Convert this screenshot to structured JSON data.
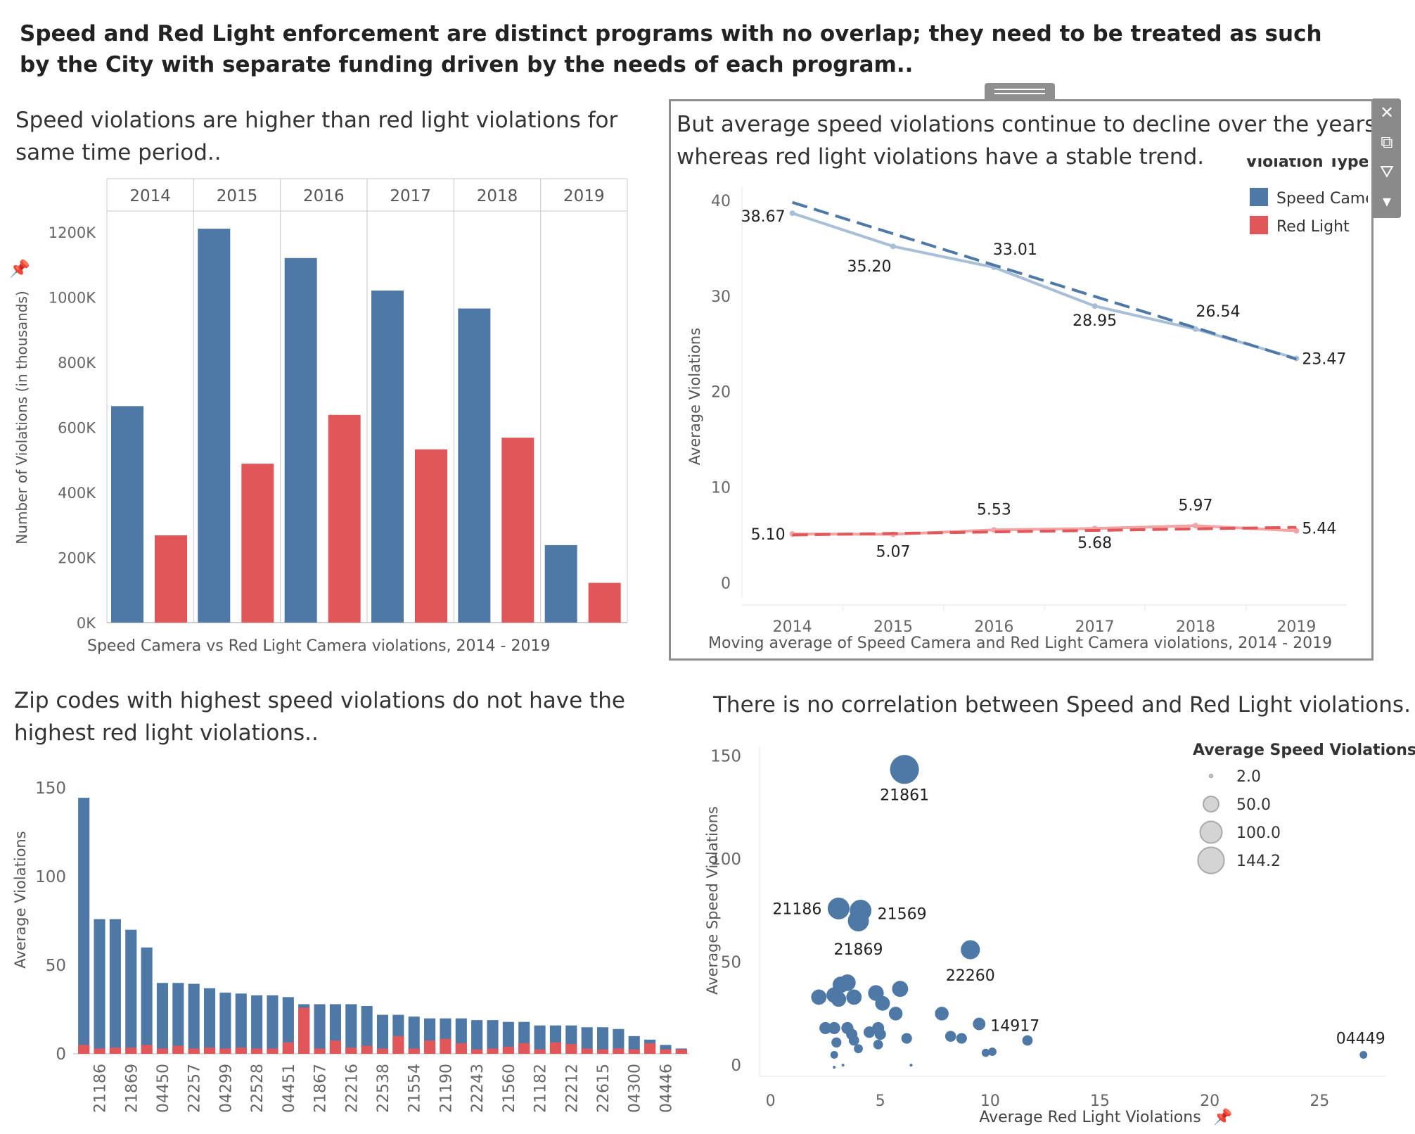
{
  "main_title": "Speed and Red Light enforcement are distinct programs with no overlap; they need to be treated as such by the City with separate funding driven by the needs of each program..",
  "colors": {
    "speed": "#4e79a7",
    "red_light": "#e15759",
    "speed_line_light": "#a8bfd8",
    "red_line_light": "#f3a3a4",
    "grid": "#e6e6e6",
    "axis": "#c8c8c8",
    "toolbar": "#8a8a8a"
  },
  "toolbar": {
    "icons": [
      "close-icon",
      "popout-icon",
      "filter-icon",
      "dropdown-icon"
    ]
  },
  "panels": {
    "bar_yearly": {
      "title_line1": "Speed violations are higher than red light violations for",
      "title_line2": "same time period..",
      "footer": "Speed Camera vs Red Light Camera violations, 2014 - 2019"
    },
    "line_avg": {
      "title_line1": "But average speed violations continue to decline over the years",
      "title_line2": "whereas red light violations have a stable trend.",
      "footer": "Moving average of Speed Camera and Red Light Camera violations, 2014 - 2019"
    },
    "zip_bars": {
      "title_line1": "Zip codes with highest speed violations do not have the",
      "title_line2": "highest red light violations.."
    },
    "scatter": {
      "title": "There is no correlation between Speed and Red Light violations."
    }
  },
  "chart_data": [
    {
      "type": "bar",
      "categories": [
        "2014",
        "2015",
        "2016",
        "2017",
        "2018",
        "2019"
      ],
      "series": [
        {
          "name": "Speed Camera",
          "values": [
            665,
            1210,
            1120,
            1020,
            965,
            238
          ]
        },
        {
          "name": "Red Light",
          "values": [
            268,
            488,
            638,
            532,
            568,
            122
          ]
        }
      ],
      "ylabel": "Number of Violations (in thousands)",
      "yticks": [
        "0K",
        "200K",
        "400K",
        "600K",
        "800K",
        "1000K",
        "1200K"
      ],
      "ylim": [
        0,
        1260
      ],
      "footer": "Speed Camera vs Red Light Camera violations, 2014 - 2019"
    },
    {
      "type": "line",
      "x": [
        "2014",
        "2015",
        "2016",
        "2017",
        "2018",
        "2019"
      ],
      "series": [
        {
          "name": "Speed Camera",
          "values": [
            38.67,
            35.2,
            33.01,
            28.95,
            26.54,
            23.47
          ],
          "labels": [
            "38.67",
            "35.20",
            "33.01",
            "28.95",
            "26.54",
            "23.47"
          ]
        },
        {
          "name": "Red Light",
          "values": [
            5.1,
            5.07,
            5.53,
            5.68,
            5.97,
            5.44
          ],
          "labels": [
            "5.10",
            "5.07",
            "5.53",
            "5.68",
            "5.97",
            "5.44"
          ]
        }
      ],
      "trend": [
        {
          "start": 39.8,
          "end": 23.4
        },
        {
          "start": 5.0,
          "end": 5.8
        }
      ],
      "ylabel": "Average Violations",
      "yticks": [
        "0",
        "10",
        "20",
        "30",
        "40"
      ],
      "ylim": [
        -1,
        40
      ],
      "legend_title": "Violation Type",
      "legend": [
        "Speed Camera",
        "Red Light"
      ],
      "legend_position": "top-right",
      "footer": "Moving average of Speed Camera and Red Light Camera violations, 2014 - 2019"
    },
    {
      "type": "bar",
      "stacked": true,
      "categories": [
        "",
        "21186",
        "",
        "21869",
        "",
        "04450",
        "",
        "22257",
        "",
        "04299",
        "",
        "22528",
        "",
        "04451",
        "",
        "21867",
        "",
        "22216",
        "",
        "22538",
        "",
        "21554",
        "",
        "21190",
        "",
        "22243",
        "",
        "21560",
        "",
        "21182",
        "",
        "22212",
        "",
        "22615",
        "",
        "04300",
        "",
        "04446",
        ""
      ],
      "series": [
        {
          "name": "Speed",
          "values": [
            144.5,
            76,
            76,
            70,
            60,
            40,
            40,
            39.5,
            37,
            34.5,
            34,
            33,
            33,
            32,
            28,
            28,
            28,
            28,
            27,
            22,
            22,
            21,
            20,
            20,
            20,
            19,
            19,
            18,
            18,
            16,
            16,
            16,
            15,
            15,
            14,
            10,
            8,
            5,
            3
          ]
        },
        {
          "name": "Red Light",
          "values": [
            5,
            3,
            3.5,
            3.5,
            5,
            3,
            4.5,
            3,
            3.5,
            3,
            3.5,
            3,
            3,
            6.5,
            26,
            3,
            7.5,
            3.5,
            4.5,
            3,
            10,
            3,
            7.5,
            8.5,
            6,
            2.5,
            3,
            4,
            6,
            2.5,
            6.5,
            5.5,
            3,
            2.5,
            3,
            2.5,
            6,
            2.5,
            2.5
          ]
        }
      ],
      "ylabel": "Average Violations",
      "yticks": [
        "0",
        "50",
        "100",
        "150"
      ],
      "ylim": [
        0,
        158
      ]
    },
    {
      "type": "scatter",
      "xlabel": "Average Red Light Violations",
      "ylabel": "Average Speed Violations",
      "xlim": [
        -0.5,
        28
      ],
      "ylim": [
        -2,
        155
      ],
      "xticks": [
        "0",
        "5",
        "10",
        "15",
        "20",
        "25"
      ],
      "yticks": [
        "0",
        "50",
        "100",
        "150"
      ],
      "legend_title": "Average Speed Violations",
      "size_legend": [
        "2.0",
        "50.0",
        "100.0",
        "144.2"
      ],
      "size_legend_values": [
        2,
        50,
        100,
        144.2
      ],
      "points": [
        {
          "x": 6.1,
          "y": 143.5,
          "label": "21861"
        },
        {
          "x": 3.1,
          "y": 76,
          "label": "21186"
        },
        {
          "x": 4.1,
          "y": 75,
          "label": "21569"
        },
        {
          "x": 4.0,
          "y": 70,
          "label": "21869"
        },
        {
          "x": 9.1,
          "y": 56,
          "label": "22260"
        },
        {
          "x": 9.5,
          "y": 20,
          "label": "14917"
        },
        {
          "x": 27.0,
          "y": 5,
          "label": "04449"
        },
        {
          "x": 2.2,
          "y": 33
        },
        {
          "x": 2.9,
          "y": 34
        },
        {
          "x": 3.2,
          "y": 39
        },
        {
          "x": 3.5,
          "y": 40
        },
        {
          "x": 3.8,
          "y": 33
        },
        {
          "x": 3.1,
          "y": 32
        },
        {
          "x": 4.8,
          "y": 35
        },
        {
          "x": 5.1,
          "y": 30
        },
        {
          "x": 5.9,
          "y": 37
        },
        {
          "x": 5.7,
          "y": 25
        },
        {
          "x": 2.5,
          "y": 18
        },
        {
          "x": 2.9,
          "y": 18
        },
        {
          "x": 3.5,
          "y": 18
        },
        {
          "x": 3.7,
          "y": 15
        },
        {
          "x": 3.8,
          "y": 12
        },
        {
          "x": 4.5,
          "y": 16
        },
        {
          "x": 4.9,
          "y": 18
        },
        {
          "x": 5.0,
          "y": 15
        },
        {
          "x": 3.0,
          "y": 11
        },
        {
          "x": 4.0,
          "y": 8
        },
        {
          "x": 2.9,
          "y": 5
        },
        {
          "x": 6.2,
          "y": 13
        },
        {
          "x": 7.8,
          "y": 25
        },
        {
          "x": 8.2,
          "y": 14
        },
        {
          "x": 8.7,
          "y": 13
        },
        {
          "x": 9.8,
          "y": 6
        },
        {
          "x": 10.1,
          "y": 6.5
        },
        {
          "x": 11.7,
          "y": 12
        },
        {
          "x": 4.9,
          "y": 10
        },
        {
          "x": 2.9,
          "y": -1
        },
        {
          "x": 3.3,
          "y": 0
        },
        {
          "x": 6.4,
          "y": 0
        }
      ]
    }
  ]
}
